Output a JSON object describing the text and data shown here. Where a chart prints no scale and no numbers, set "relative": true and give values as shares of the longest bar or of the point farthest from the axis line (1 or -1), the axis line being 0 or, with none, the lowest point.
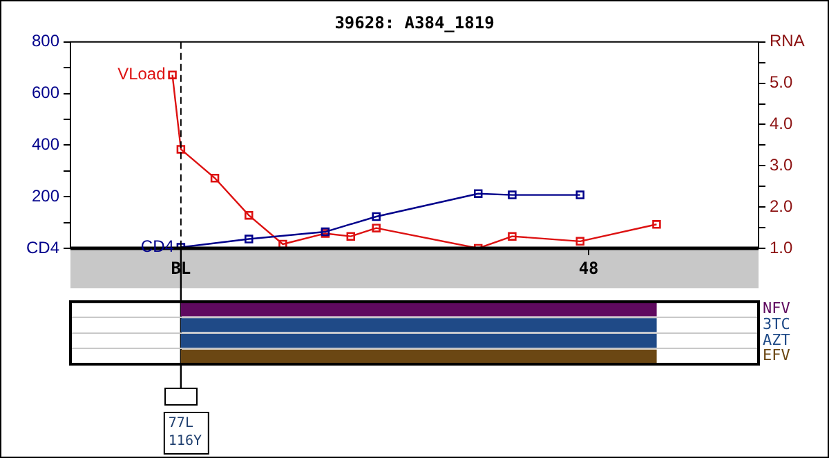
{
  "chart_data": [
    {
      "type": "line",
      "title": "39628: A384_1819",
      "categories": [
        null,
        null,
        null,
        null,
        null,
        null,
        null,
        null,
        null,
        null,
        null,
        null,
        null,
        "BL",
        null,
        null,
        null,
        null,
        null,
        null,
        null,
        null,
        null,
        null,
        null,
        null,
        null,
        null,
        null,
        null,
        null,
        null,
        null,
        null,
        null,
        null,
        null,
        null,
        null,
        null,
        null,
        null,
        null,
        null,
        null,
        null,
        null,
        null,
        null,
        null,
        null,
        null,
        null,
        null,
        null,
        null,
        null,
        null,
        null,
        null,
        null,
        "48",
        null,
        null,
        null,
        null,
        null,
        null,
        null,
        null,
        null,
        null,
        null,
        null,
        null,
        null,
        null,
        null,
        null,
        null,
        null,
        null
      ],
      "ylim": [
        0,
        800
      ],
      "yticks": [
        {
          "value": 0,
          "label": "CD4"
        },
        {
          "value": 100,
          "label": null
        },
        200,
        {
          "value": 300,
          "label": null
        },
        400,
        {
          "value": 500,
          "label": null
        },
        600,
        {
          "value": 700,
          "label": null
        },
        800
      ],
      "y2lim": [
        1,
        6
      ],
      "y2ticks": [
        {
          "value": 1,
          "label": "1.0"
        },
        {
          "value": 1.5,
          "label": null
        },
        {
          "value": 2,
          "label": "2.0"
        },
        {
          "value": 2.5,
          "label": null
        },
        {
          "value": 3,
          "label": "3.0"
        },
        {
          "value": 3.5,
          "label": null
        },
        {
          "value": 4,
          "label": "4.0"
        },
        {
          "value": 4.5,
          "label": null
        },
        {
          "value": 5,
          "label": "5.0"
        },
        {
          "value": 5.5,
          "label": null
        },
        {
          "value": 6,
          "label": "RNA"
        }
      ],
      "series": [
        {
          "name": "CD4",
          "color": "#00008b",
          "values": [
            null,
            null,
            null,
            null,
            null,
            null,
            null,
            null,
            null,
            null,
            null,
            null,
            null,
            4,
            null,
            null,
            null,
            null,
            null,
            null,
            null,
            36,
            null,
            null,
            null,
            null,
            null,
            null,
            null,
            null,
            64,
            null,
            null,
            null,
            null,
            null,
            123,
            null,
            null,
            null,
            null,
            null,
            null,
            null,
            null,
            null,
            null,
            null,
            212,
            null,
            null,
            null,
            207,
            null,
            null,
            null,
            null,
            null,
            null,
            null,
            207,
            null,
            null,
            null,
            null,
            null,
            null,
            null,
            null,
            null,
            null,
            null,
            null,
            null,
            null,
            null,
            null,
            null,
            null,
            null,
            null,
            null
          ]
        },
        {
          "name": "VLoad",
          "color": "#dd1111",
          "axis": "y2",
          "values": [
            null,
            null,
            null,
            null,
            null,
            null,
            null,
            null,
            null,
            null,
            null,
            null,
            5.2,
            3.4,
            null,
            null,
            null,
            2.7,
            null,
            null,
            null,
            1.8,
            null,
            null,
            null,
            1.1,
            null,
            null,
            null,
            null,
            1.36,
            null,
            null,
            1.29,
            null,
            null,
            1.49,
            null,
            null,
            null,
            null,
            null,
            null,
            null,
            null,
            null,
            null,
            null,
            1.0,
            null,
            null,
            null,
            1.29,
            null,
            null,
            null,
            null,
            null,
            null,
            null,
            1.17,
            null,
            null,
            null,
            null,
            null,
            null,
            null,
            null,
            1.58,
            null,
            null,
            null,
            null,
            null,
            null,
            null,
            null,
            null,
            null,
            null,
            null
          ]
        }
      ],
      "ref_lines": [
        {
          "axis": "x",
          "value": "BL",
          "line_style": "dashed",
          "color": "#000000"
        }
      ],
      "marker": "square",
      "grid": false,
      "legend": false
    },
    {
      "type": "bar",
      "orientation": "horizontal",
      "categories": [
        "NFV",
        "3TC",
        "AZT",
        "EFV"
      ],
      "values": [
        1,
        1,
        1,
        1
      ],
      "relative": true,
      "colors": [
        "#5f0a5f",
        "#1f4a87",
        "#1f4a87",
        "#6b4713"
      ],
      "tick_labels": "y",
      "grid": "y",
      "annotations": [
        "77L",
        "116Y"
      ]
    }
  ]
}
